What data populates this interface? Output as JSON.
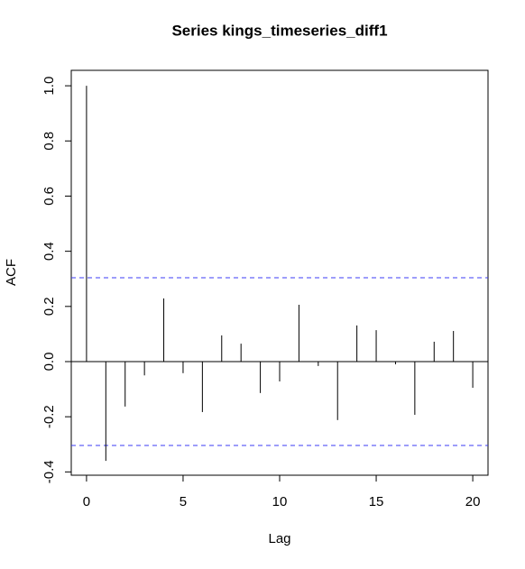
{
  "chart_data": {
    "type": "acf",
    "title": "Series  kings_timeseries_diff1",
    "x_label": "Lag",
    "y_label": "ACF",
    "x": [
      0,
      1,
      2,
      3,
      4,
      5,
      6,
      7,
      8,
      9,
      10,
      11,
      12,
      13,
      14,
      15,
      16,
      17,
      18,
      19,
      20
    ],
    "values": [
      1.0,
      -0.36,
      -0.163,
      -0.05,
      0.229,
      -0.042,
      -0.183,
      0.095,
      0.065,
      -0.114,
      -0.072,
      0.206,
      -0.016,
      -0.212,
      0.131,
      0.114,
      -0.01,
      -0.193,
      0.072,
      0.111,
      -0.095
    ],
    "color": "#000000",
    "confidence_limits": [
      0.304,
      -0.304
    ],
    "confidence_color": "#3b3bf5",
    "xlim": [
      -0.79,
      20.79
    ],
    "ylim": [
      -0.412,
      1.056
    ],
    "xticks": [
      0,
      5,
      10,
      15,
      20
    ],
    "yticks": [
      -0.4,
      -0.2,
      {
        "value": 0,
        "label": "0.0"
      },
      0.2,
      0.4,
      0.6,
      0.8,
      {
        "value": 1,
        "label": "1.0"
      }
    ]
  }
}
